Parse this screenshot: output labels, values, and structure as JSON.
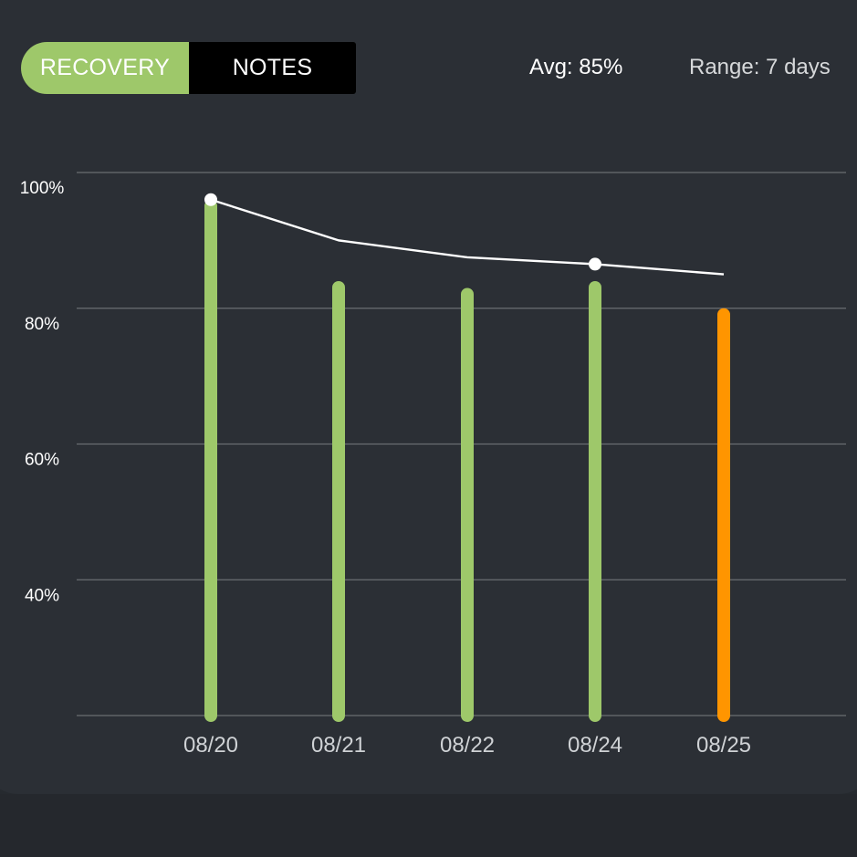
{
  "colors": {
    "background": "#2b2f35",
    "accent_green": "#9ec86a",
    "accent_orange": "#ff9500",
    "line": "#ffffff",
    "grid": "#6a6e72"
  },
  "toggle": {
    "options": [
      "RECOVERY",
      "NOTES"
    ],
    "selected": "RECOVERY"
  },
  "header": {
    "avg": "Avg: 85%",
    "range": "Range: 7 days"
  },
  "chart_data": {
    "type": "bar",
    "categories": [
      "08/20",
      "08/21",
      "08/22",
      "08/24",
      "08/25"
    ],
    "series": [
      {
        "kind": "bar",
        "values": [
          96,
          84,
          83,
          84,
          80
        ],
        "colors": [
          "#9ec86a",
          "#9ec86a",
          "#9ec86a",
          "#9ec86a",
          "#ff9500"
        ]
      },
      {
        "kind": "line",
        "values": [
          96,
          90,
          87.5,
          86.5,
          85
        ],
        "markers": [
          true,
          false,
          false,
          true,
          false
        ]
      }
    ],
    "y_tick_labels": [
      "100%",
      "80%",
      "60%",
      "40%"
    ],
    "y_ticks": [
      100,
      80,
      60,
      40
    ],
    "ylim": [
      20,
      100
    ],
    "grid": true
  }
}
